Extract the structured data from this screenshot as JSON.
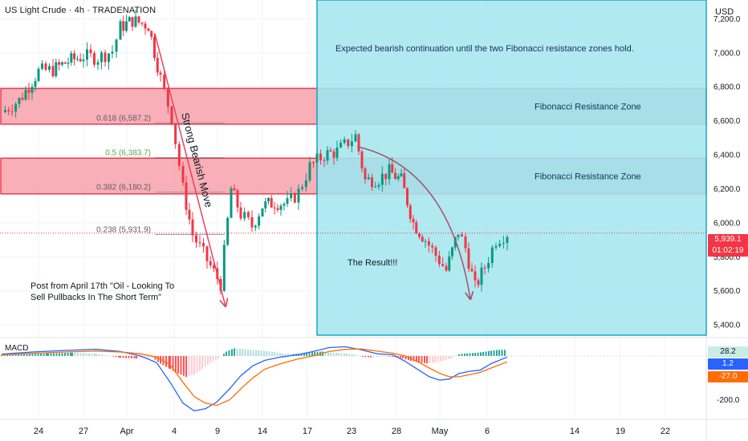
{
  "header": {
    "title": "US Light Crude · 4h · TRADENATION",
    "currency": "USD"
  },
  "annotations": {
    "bearish_move": "Strong Bearish Move",
    "post_note_1": "Post from April 17th \"Oil - Looking To",
    "post_note_2": "Sell Pullbacks In The Short Term\"",
    "result": "The Result!!!",
    "expected": "Expected bearish continuation until the two Fibonacci resistance zones hold.",
    "zone_upper": "Fibonacci Resistance Zone",
    "zone_lower": "Fibonacci Resistance Zone"
  },
  "fib_levels": [
    {
      "label": "0.618 (6,587.2)",
      "ratio": 0.618,
      "price": 6587.2
    },
    {
      "label": "0.5 (6,383.7)",
      "ratio": 0.5,
      "price": 6383.7
    },
    {
      "label": "0.382 (6,180.2)",
      "ratio": 0.382,
      "price": 6180.2
    },
    {
      "label": "0.238 (5,931.9)",
      "ratio": 0.238,
      "price": 5931.9
    }
  ],
  "zones": [
    {
      "name": "upper",
      "top": 6790,
      "bottom": 6580
    },
    {
      "name": "lower",
      "top": 6380,
      "bottom": 6170
    }
  ],
  "price_axis": {
    "ticks": [
      "7,200.0",
      "7,000.0",
      "6,800.0",
      "6,600.0",
      "6,400.0",
      "6,200.0",
      "6,000.0",
      "5,800.0",
      "5,600.0",
      "5,400.0"
    ],
    "tick_values": [
      7200,
      7000,
      6800,
      6600,
      6400,
      6200,
      6000,
      5800,
      5600,
      5400
    ],
    "range": [
      5330,
      7310
    ]
  },
  "price_tags": {
    "last": "5,939.1",
    "countdown": "01:02:19",
    "last_color": "#f23645"
  },
  "macd": {
    "label": "MACD",
    "ticks": [
      "-200.0"
    ],
    "tags": [
      {
        "text": "28.2",
        "color": "#c9ece5",
        "text_color": "#131722"
      },
      {
        "text": "1.2",
        "color": "#2962ff",
        "text_color": "#ffffff"
      },
      {
        "text": "-27.0",
        "color": "#ff6d00",
        "text_color": "#ffffff"
      }
    ],
    "range": [
      -285,
      80
    ]
  },
  "time_axis": [
    "24",
    "27",
    "Apr",
    "4",
    "9",
    "14",
    "17",
    "23",
    "28",
    "May",
    "6",
    "14",
    "19",
    "22"
  ],
  "colors": {
    "bull": "#089981",
    "bear": "#f23645",
    "zone_fill": "#f7a1aa",
    "zone_border": "#ef3a4c",
    "result_fill": "#a6e6ef",
    "result_border": "#16a9c8",
    "macd_line": "#2962ff",
    "signal_line": "#ff6d00",
    "arrow": "#e8435c",
    "arc": "#a3536c"
  },
  "chart_data": {
    "type": "candlestick",
    "title": "US Light Crude · 4h · TRADENATION",
    "xlabel": "",
    "ylabel": "",
    "ylim": [
      5330,
      7310
    ],
    "close_path": [
      [
        "Mar 21",
        6650
      ],
      [
        "Mar 22",
        6720
      ],
      [
        "Mar 24",
        6890
      ],
      [
        "Mar 25",
        6900
      ],
      [
        "Mar 26",
        6950
      ],
      [
        "Mar 27",
        6980
      ],
      [
        "Mar 28",
        6970
      ],
      [
        "Mar 30",
        7010
      ],
      [
        "Mar 31",
        7150
      ],
      [
        "Apr 1",
        7190
      ],
      [
        "Apr 2",
        7160
      ],
      [
        "Apr 3",
        6850
      ],
      [
        "Apr 4",
        6620
      ],
      [
        "Apr 6",
        6200
      ],
      [
        "Apr 7",
        5930
      ],
      [
        "Apr 8",
        5780
      ],
      [
        "Apr 9",
        5640
      ],
      [
        "Apr 10",
        6200
      ],
      [
        "Apr 11",
        6050
      ],
      [
        "Apr 13",
        5980
      ],
      [
        "Apr 14",
        6100
      ],
      [
        "Apr 15",
        6120
      ],
      [
        "Apr 16",
        6110
      ],
      [
        "Apr 17",
        6180
      ],
      [
        "Apr 18",
        6330
      ],
      [
        "Apr 21",
        6400
      ],
      [
        "Apr 22",
        6420
      ],
      [
        "Apr 23",
        6510
      ],
      [
        "Apr 24",
        6250
      ],
      [
        "Apr 25",
        6260
      ],
      [
        "Apr 27",
        6300
      ],
      [
        "Apr 28",
        6250
      ],
      [
        "Apr 29",
        6000
      ],
      [
        "Apr 30",
        5900
      ],
      [
        "May 1",
        5720
      ],
      [
        "May 2",
        5950
      ],
      [
        "May 3",
        5850
      ],
      [
        "May 5",
        5620
      ],
      [
        "May 6",
        5740
      ],
      [
        "May 7",
        5900
      ],
      [
        "May 8",
        5939.1
      ]
    ],
    "macd_histogram_range": [
      -105,
      40
    ],
    "macd_line_range": [
      -260,
      40
    ]
  }
}
